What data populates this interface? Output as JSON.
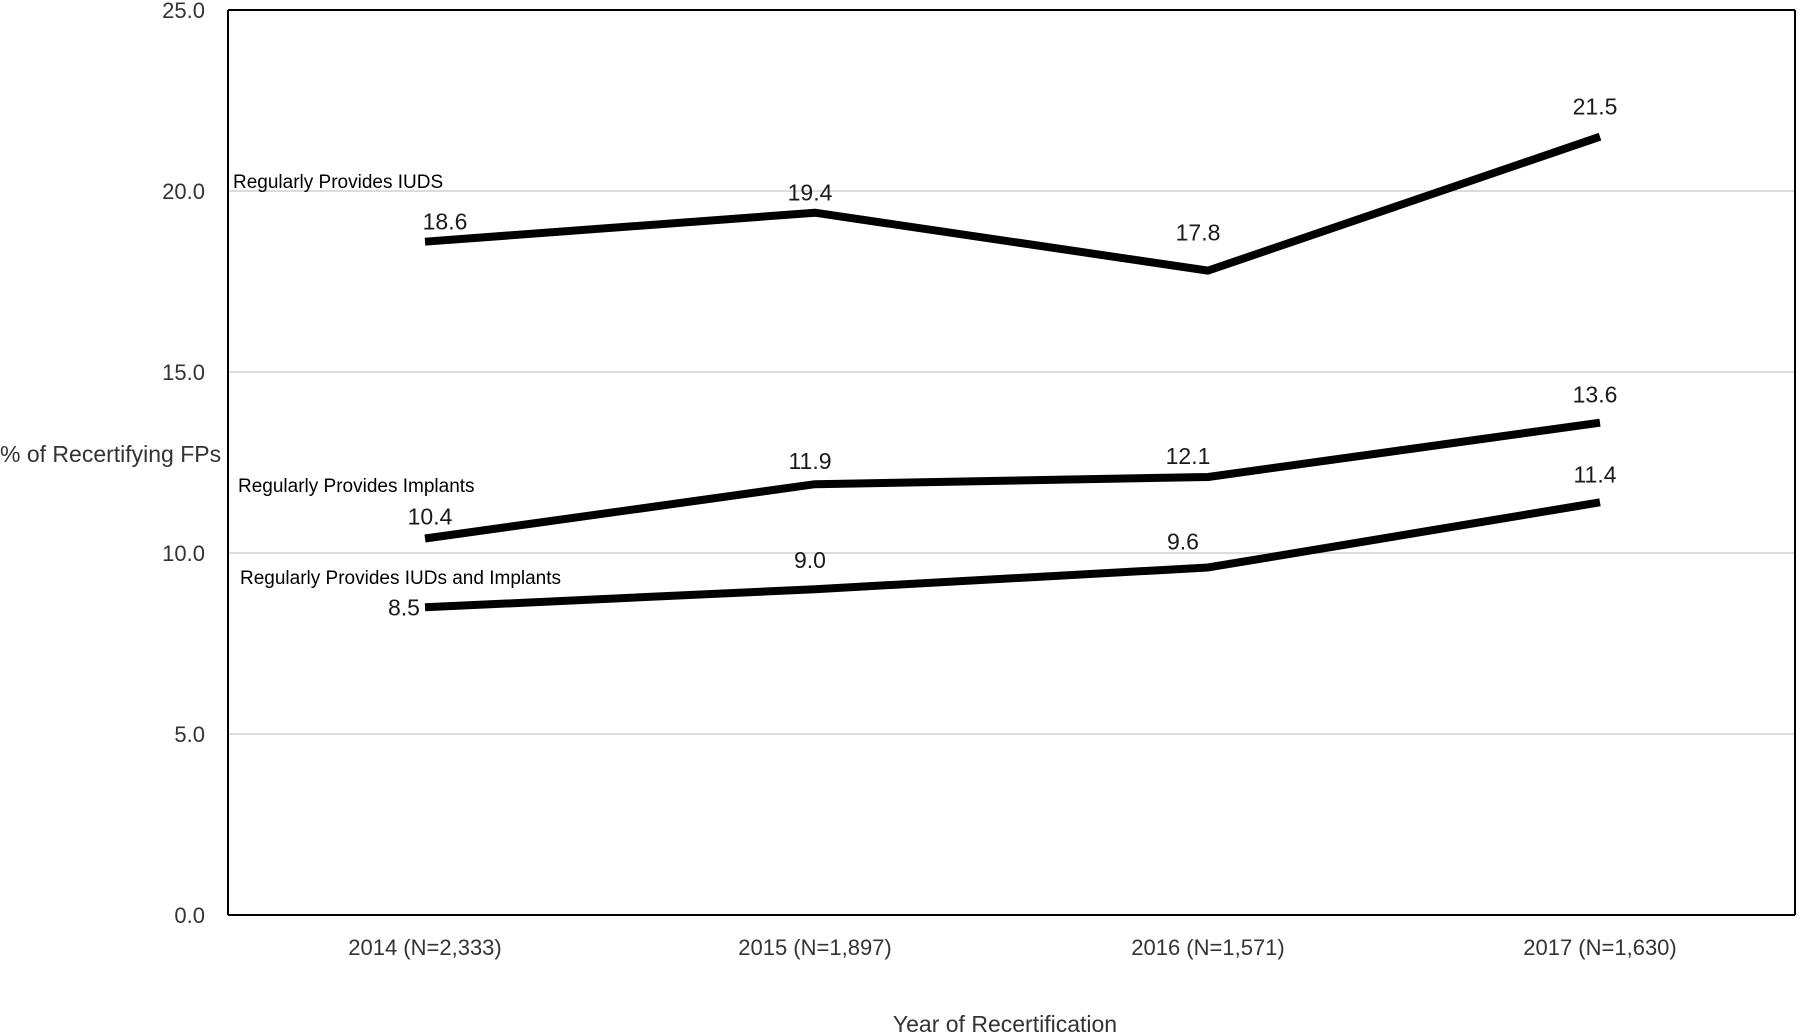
{
  "chart_data": {
    "type": "line",
    "title": "",
    "xlabel": "Year of Recertification",
    "ylabel": "% of Recertifying FPs",
    "ylim": [
      0,
      25
    ],
    "yticks": [
      "0.0",
      "5.0",
      "10.0",
      "15.0",
      "20.0",
      "25.0"
    ],
    "grid": true,
    "legend": "none",
    "categories": [
      "2014 (N=2,333)",
      "2015 (N=1,897)",
      "2016 (N=1,571)",
      "2017 (N=1,630)"
    ],
    "series": [
      {
        "name": "Regularly Provides IUDS",
        "values": [
          18.6,
          19.4,
          17.8,
          21.5
        ],
        "labels": [
          "18.6",
          "19.4",
          "17.8",
          "21.5"
        ]
      },
      {
        "name": "Regularly Provides Implants",
        "values": [
          10.4,
          11.9,
          12.1,
          13.6
        ],
        "labels": [
          "10.4",
          "11.9",
          "12.1",
          "13.6"
        ]
      },
      {
        "name": "Regularly Provides IUDs and Implants",
        "values": [
          8.5,
          9.0,
          9.6,
          11.4
        ],
        "labels": [
          "8.5",
          "9.0",
          "9.6",
          "11.4"
        ]
      }
    ],
    "colors": {
      "line": "#000000",
      "grid": "#d0d0d0",
      "text": "#333333"
    }
  }
}
